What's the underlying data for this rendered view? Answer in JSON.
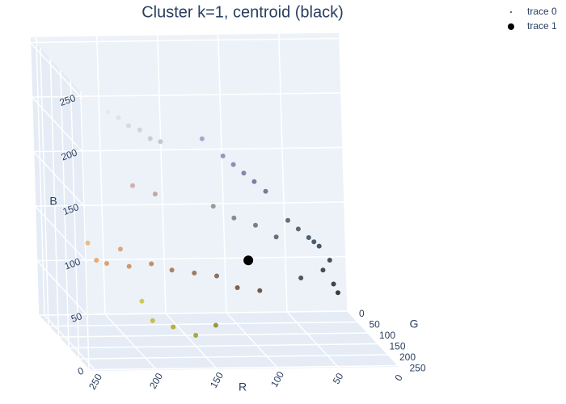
{
  "chart_data": {
    "type": "scatter3d",
    "title": "Cluster k=1, centroid (black)",
    "xaxis_title": "R",
    "yaxis_title": "G",
    "zaxis_title": "B",
    "xlim": [
      0,
      255
    ],
    "ylim": [
      0,
      255
    ],
    "zlim": [
      0,
      255
    ],
    "xticks": [
      0,
      50,
      100,
      150,
      200,
      250
    ],
    "yticks": [
      0,
      50,
      100,
      150,
      200,
      250
    ],
    "zticks": [
      0,
      50,
      100,
      150,
      200,
      250
    ],
    "series": [
      {
        "name": "trace 0",
        "color_by_rgb": true,
        "x": [
          20,
          30,
          40,
          25,
          15,
          50,
          35,
          45,
          10,
          60,
          80,
          100,
          120,
          140,
          90,
          110,
          70,
          90,
          110,
          130,
          200,
          220,
          180,
          210,
          230,
          190,
          230,
          220,
          200,
          240,
          210,
          180,
          160,
          120,
          100,
          80,
          140,
          190,
          170,
          150,
          200,
          130,
          200,
          180
        ],
        "y": [
          40,
          50,
          60,
          35,
          25,
          70,
          55,
          45,
          15,
          80,
          95,
          110,
          130,
          150,
          100,
          120,
          80,
          100,
          115,
          135,
          205,
          222,
          185,
          210,
          230,
          195,
          150,
          140,
          130,
          170,
          150,
          120,
          100,
          80,
          60,
          50,
          90,
          180,
          160,
          150,
          190,
          130,
          160,
          150
        ],
        "z": [
          55,
          70,
          80,
          45,
          30,
          90,
          75,
          40,
          20,
          100,
          130,
          150,
          170,
          190,
          140,
          160,
          85,
          100,
          110,
          125,
          210,
          225,
          195,
          215,
          232,
          200,
          80,
          75,
          70,
          100,
          90,
          70,
          60,
          50,
          35,
          30,
          55,
          30,
          20,
          10,
          50,
          15,
          150,
          140
        ]
      },
      {
        "name": "trace 1",
        "color": "#000000",
        "x": [
          100
        ],
        "y": [
          120
        ],
        "z": [
          72
        ]
      }
    ],
    "grid": true,
    "legend": "top-right"
  }
}
